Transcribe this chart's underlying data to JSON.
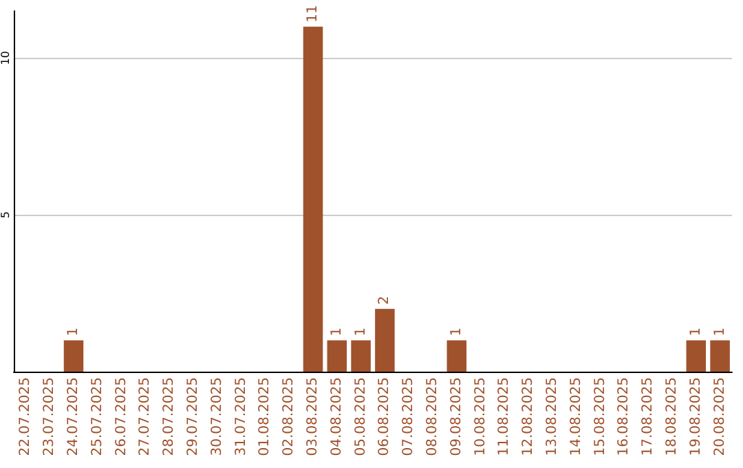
{
  "chart_data": {
    "type": "bar",
    "categories": [
      "22.07.2025",
      "23.07.2025",
      "24.07.2025",
      "25.07.2025",
      "26.07.2025",
      "27.07.2025",
      "28.07.2025",
      "29.07.2025",
      "30.07.2025",
      "31.07.2025",
      "01.08.2025",
      "02.08.2025",
      "03.08.2025",
      "04.08.2025",
      "05.08.2025",
      "06.08.2025",
      "07.08.2025",
      "08.08.2025",
      "09.08.2025",
      "10.08.2025",
      "11.08.2025",
      "12.08.2025",
      "13.08.2025",
      "14.08.2025",
      "15.08.2025",
      "16.08.2025",
      "17.08.2025",
      "18.08.2025",
      "19.08.2025",
      "20.08.2025"
    ],
    "values": [
      0,
      0,
      1,
      0,
      0,
      0,
      0,
      0,
      0,
      0,
      0,
      0,
      11,
      1,
      1,
      2,
      0,
      0,
      1,
      0,
      0,
      0,
      0,
      0,
      0,
      0,
      0,
      0,
      1,
      1
    ],
    "value_labels": [
      null,
      null,
      "1",
      null,
      null,
      null,
      null,
      null,
      null,
      null,
      null,
      null,
      "11",
      "1",
      "1",
      "2",
      null,
      null,
      "1",
      null,
      null,
      null,
      null,
      null,
      null,
      null,
      null,
      null,
      "1",
      "1"
    ],
    "color": "#a0522d",
    "ylim": [
      0,
      11.5
    ],
    "yticks": [
      5,
      10
    ],
    "grid": "y"
  }
}
